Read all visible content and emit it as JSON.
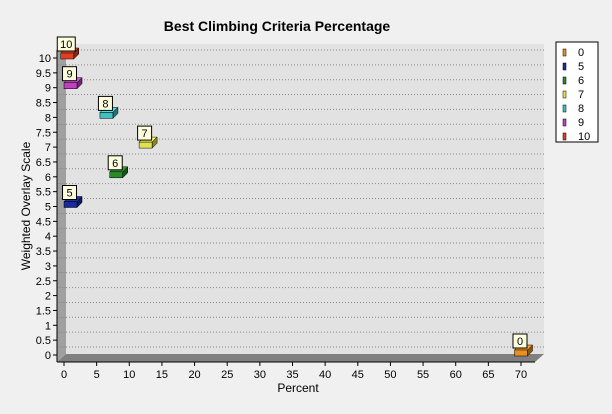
{
  "chart_data": {
    "type": "scatter",
    "title": "Best Climbing Criteria Percentage",
    "xlabel": "Percent",
    "ylabel": "Weighted Overlay Scale",
    "xlim": [
      0,
      70
    ],
    "ylim": [
      0,
      10
    ],
    "x_ticks": [
      0,
      5,
      10,
      15,
      20,
      25,
      30,
      35,
      40,
      45,
      50,
      55,
      60,
      65,
      70
    ],
    "y_ticks": [
      0,
      0.5,
      1,
      1.5,
      2,
      2.5,
      3,
      3.5,
      4,
      4.5,
      5,
      5.5,
      6,
      6.5,
      7,
      7.5,
      8,
      8.5,
      9,
      9.5,
      10
    ],
    "grid": "horizontal dotted",
    "legend_position": "right",
    "series": [
      {
        "name": "0",
        "x": [
          70
        ],
        "y": [
          0
        ],
        "color": "#e89020"
      },
      {
        "name": "5",
        "x": [
          1
        ],
        "y": [
          5
        ],
        "color": "#1a2a9a"
      },
      {
        "name": "6",
        "x": [
          8
        ],
        "y": [
          6
        ],
        "color": "#2a8a2a"
      },
      {
        "name": "7",
        "x": [
          12.5
        ],
        "y": [
          7
        ],
        "color": "#e0e050"
      },
      {
        "name": "8",
        "x": [
          6.5
        ],
        "y": [
          8
        ],
        "color": "#40c0c0"
      },
      {
        "name": "9",
        "x": [
          1
        ],
        "y": [
          9
        ],
        "color": "#c040c0"
      },
      {
        "name": "10",
        "x": [
          0.5
        ],
        "y": [
          10
        ],
        "color": "#e04020"
      }
    ]
  }
}
